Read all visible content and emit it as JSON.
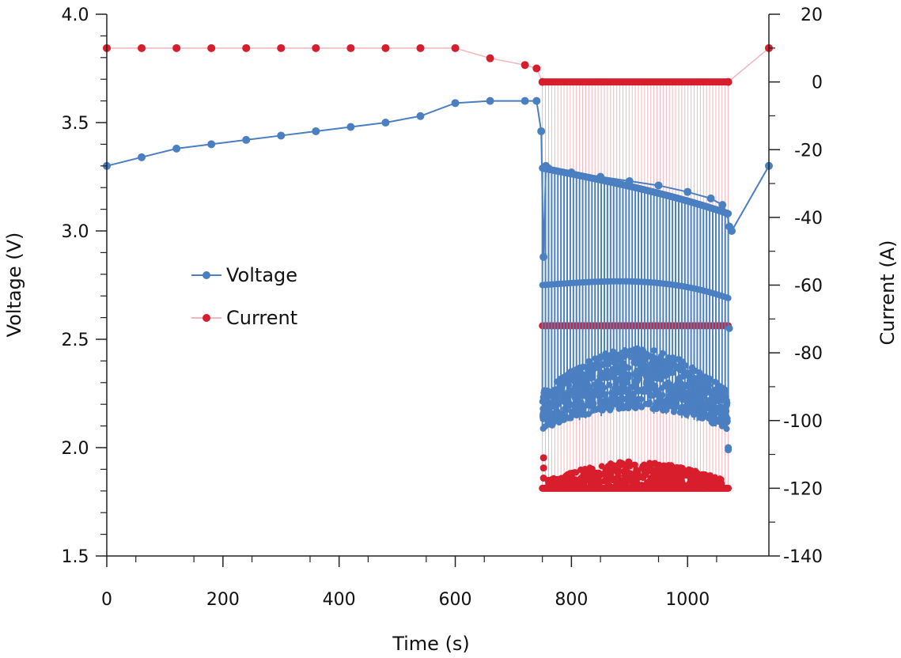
{
  "chart_data": {
    "type": "line",
    "title": "",
    "xlabel": "Time (s)",
    "ylabel_left": "Voltage (V)",
    "ylabel_right": "Current (A)",
    "xlim": [
      0,
      1140
    ],
    "ylim_left": [
      1.5,
      4.0
    ],
    "ylim_right": [
      -140,
      20
    ],
    "x_ticks": [
      "0",
      "200",
      "400",
      "600",
      "800",
      "1000"
    ],
    "y_left_ticks": [
      "1.5",
      "2.0",
      "2.5",
      "3.0",
      "3.5",
      "4.0"
    ],
    "y_right_ticks": [
      "-140",
      "-120",
      "-100",
      "-80",
      "-60",
      "-40",
      "-20",
      "0",
      "20"
    ],
    "legend": [
      "Voltage",
      "Current"
    ],
    "legend_position": "center-left",
    "colors": {
      "voltage": "#4a7fc1",
      "current": "#d81e2c",
      "current_line": "#f2b6bc",
      "axis": "#222222"
    },
    "pulse_region": {
      "start": 750,
      "end": 1070
    },
    "series": [
      {
        "name": "Voltage",
        "axis": "left",
        "x": [
          0,
          60,
          120,
          180,
          240,
          300,
          360,
          420,
          480,
          540,
          600,
          660,
          720,
          740,
          748,
          752,
          756,
          760,
          800,
          850,
          900,
          950,
          1000,
          1040,
          1060,
          1068,
          1072,
          1076,
          1140
        ],
        "values": [
          3.3,
          3.34,
          3.38,
          3.4,
          3.42,
          3.44,
          3.46,
          3.48,
          3.5,
          3.53,
          3.59,
          3.6,
          3.6,
          3.6,
          3.46,
          2.88,
          3.3,
          3.29,
          3.27,
          3.25,
          3.23,
          3.21,
          3.18,
          3.15,
          3.12,
          3.08,
          3.02,
          3.0,
          3.3
        ]
      },
      {
        "name": "Current",
        "axis": "right",
        "x": [
          0,
          60,
          120,
          180,
          240,
          300,
          360,
          420,
          480,
          540,
          600,
          660,
          720,
          740,
          750,
          1070,
          1140
        ],
        "values": [
          10,
          10,
          10,
          10,
          10,
          10,
          10,
          10,
          10,
          10,
          10,
          7,
          5,
          4,
          0,
          0,
          10
        ]
      }
    ]
  }
}
